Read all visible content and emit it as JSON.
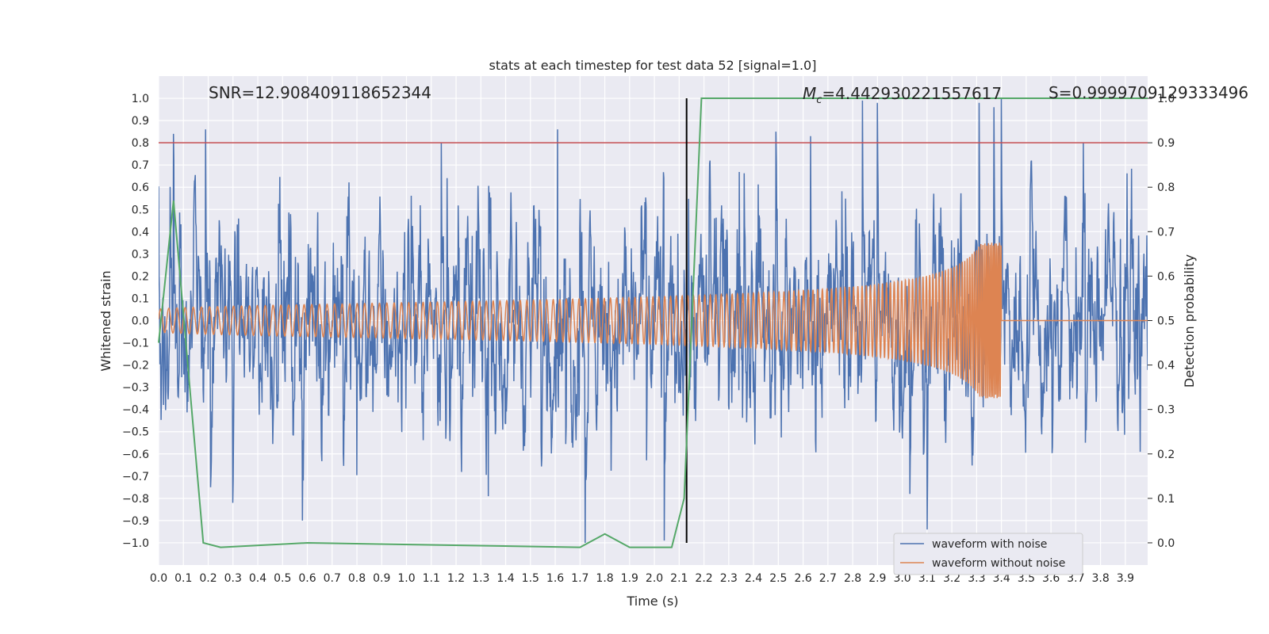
{
  "chart_data": {
    "type": "line",
    "title": "stats at each timestep for test data 52 [signal=1.0]",
    "xlabel": "Time (s)",
    "ylabel": "Whitened strain",
    "ylabel_right": "Detection probability",
    "xlim": [
      0.0,
      3.99
    ],
    "ylim": [
      -1.1,
      1.1
    ],
    "ylim_right": [
      -0.05,
      1.05
    ],
    "x_ticks": [
      "0.0",
      "0.1",
      "0.2",
      "0.3",
      "0.4",
      "0.5",
      "0.6",
      "0.7",
      "0.8",
      "0.9",
      "1.0",
      "1.1",
      "1.2",
      "1.3",
      "1.4",
      "1.5",
      "1.6",
      "1.7",
      "1.8",
      "1.9",
      "2.0",
      "2.1",
      "2.2",
      "2.3",
      "2.4",
      "2.5",
      "2.6",
      "2.7",
      "2.8",
      "2.9",
      "3.0",
      "3.1",
      "3.2",
      "3.3",
      "3.4",
      "3.5",
      "3.6",
      "3.7",
      "3.8",
      "3.9"
    ],
    "y_ticks": [
      "1.0",
      "0.9",
      "0.8",
      "0.7",
      "0.6",
      "0.5",
      "0.4",
      "0.3",
      "0.2",
      "0.1",
      "0.0",
      "−0.1",
      "−0.2",
      "−0.3",
      "−0.4",
      "−0.5",
      "−0.6",
      "−0.7",
      "−0.8",
      "−0.9",
      "−1.0"
    ],
    "y_ticks_right": [
      "1.0",
      "0.9",
      "0.8",
      "0.7",
      "0.6",
      "0.5",
      "0.4",
      "0.3",
      "0.2",
      "0.1",
      "0.0"
    ],
    "annotations": {
      "snr": "SNR=12.908409118652344",
      "mc_symbol": "M",
      "mc_sub": "c",
      "mc_value": "=4.442930221557617",
      "s": "S=0.9999709129333496"
    },
    "grid": true,
    "legend_position": "lower-right",
    "colors": {
      "noise": "#4c72b0",
      "clean": "#dd8452",
      "probability": "#55a868",
      "threshold": "#c44e52",
      "detection_line": "#000000",
      "plot_bg": "#eaeaf2"
    },
    "series": [
      {
        "name": "waveform with noise",
        "kind": "noise",
        "amplitude": 0.3,
        "peaks": [
          [
            0.06,
            0.84
          ],
          [
            0.19,
            0.86
          ],
          [
            0.21,
            -0.75
          ],
          [
            0.3,
            -0.82
          ],
          [
            0.58,
            -0.9
          ],
          [
            1.14,
            0.8
          ],
          [
            1.33,
            -0.79
          ],
          [
            1.61,
            0.86
          ],
          [
            1.72,
            -1.0
          ],
          [
            2.04,
            -0.99
          ],
          [
            2.49,
            0.85
          ],
          [
            2.63,
            0.83
          ],
          [
            2.84,
            0.99
          ],
          [
            2.9,
            0.98
          ],
          [
            3.03,
            -0.78
          ],
          [
            3.1,
            -0.94
          ],
          [
            3.31,
            0.98
          ],
          [
            3.37,
            0.96
          ],
          [
            3.4,
            1.0
          ],
          [
            3.73,
            0.8
          ]
        ]
      },
      {
        "name": "waveform without noise",
        "kind": "chirp",
        "f0": 30,
        "amp_start": 0.05,
        "amp_end": 0.35,
        "t_merge": 3.4
      },
      {
        "kind": "probability",
        "points": [
          [
            0.0,
            0.45
          ],
          [
            0.06,
            0.77
          ],
          [
            0.18,
            0.0
          ],
          [
            0.25,
            -0.01
          ],
          [
            0.6,
            0.0
          ],
          [
            1.7,
            -0.01
          ],
          [
            1.8,
            0.02
          ],
          [
            1.9,
            -0.01
          ],
          [
            2.07,
            -0.01
          ],
          [
            2.12,
            0.1
          ],
          [
            2.19,
            1.0
          ],
          [
            3.99,
            1.0
          ]
        ]
      }
    ],
    "threshold_right": 0.9,
    "detection_time": 2.13
  }
}
